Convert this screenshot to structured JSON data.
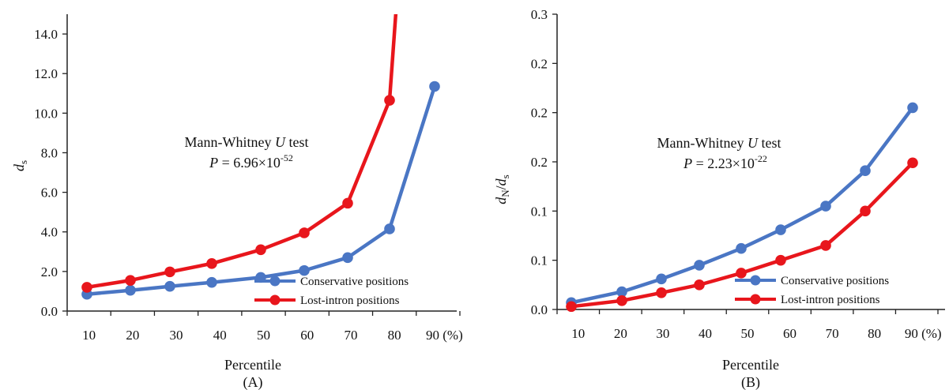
{
  "chart_data": [
    {
      "type": "line",
      "panel_label": "(A)",
      "xlabel": "Percentile",
      "ylabel": "ds",
      "ylim": [
        0,
        15
      ],
      "yticks": [
        0,
        2,
        4,
        6,
        8,
        10,
        12,
        14
      ],
      "ytick_labels": [
        "0.0",
        "2.0",
        "4.0",
        "6.0",
        "8.0",
        "10.0",
        "12.0",
        "14.0"
      ],
      "xtick_labels": [
        "10",
        "20",
        "30",
        "40",
        "50",
        "60",
        "70",
        "80",
        "90 (%)"
      ],
      "grid": false,
      "legend_position": "bottom-right",
      "annotation": {
        "line1_prefix": "Mann-Whitney ",
        "line1_italic": "U",
        "line1_suffix": " test",
        "line2_prefix": "P",
        "line2_middle": " = 6.96×10",
        "line2_exp": "-52"
      },
      "series": [
        {
          "name": "Conservative positions",
          "color": "#4a76c4",
          "x": [
            10,
            20,
            30,
            40,
            50,
            60,
            70,
            80,
            90
          ],
          "y": [
            0.85,
            1.05,
            1.25,
            1.45,
            1.7,
            2.05,
            2.7,
            4.15,
            11.35
          ]
        },
        {
          "name": "Lost-intron positions",
          "color": "#e8161c",
          "x": [
            10,
            20,
            30,
            40,
            50,
            60,
            70,
            80
          ],
          "y": [
            1.2,
            1.55,
            1.98,
            2.4,
            3.1,
            3.95,
            5.45,
            10.65
          ],
          "extends_beyond_top": true
        }
      ]
    },
    {
      "type": "line",
      "panel_label": "(B)",
      "xlabel": "Percentile",
      "ylabel": "dN/ds",
      "ylim": [
        0,
        0.3
      ],
      "yticks": [
        0,
        0.05,
        0.1,
        0.15,
        0.2,
        0.25,
        0.3
      ],
      "ytick_labels": [
        "0.0",
        "0.1",
        "0.1",
        "0.2",
        "0.2",
        "0.2",
        "0.3"
      ],
      "xtick_labels": [
        "10",
        "20",
        "30",
        "40",
        "50",
        "60",
        "70",
        "80",
        "90 (%)"
      ],
      "grid": false,
      "legend_position": "bottom-right",
      "annotation": {
        "line1_prefix": "Mann-Whitney ",
        "line1_italic": "U",
        "line1_suffix": " test",
        "line2_prefix": "P",
        "line2_middle": " = 2.23×10",
        "line2_exp": "-22"
      },
      "series": [
        {
          "name": "Conservative positions",
          "color": "#4a76c4",
          "x": [
            10,
            20,
            30,
            40,
            50,
            60,
            70,
            80,
            90
          ],
          "y": [
            0.007,
            0.018,
            0.031,
            0.045,
            0.062,
            0.081,
            0.105,
            0.141,
            0.205
          ]
        },
        {
          "name": "Lost-intron positions",
          "color": "#e8161c",
          "x": [
            10,
            20,
            30,
            40,
            50,
            60,
            70,
            80,
            90
          ],
          "y": [
            0.003,
            0.009,
            0.017,
            0.025,
            0.037,
            0.05,
            0.065,
            0.1,
            0.149
          ]
        }
      ]
    }
  ]
}
